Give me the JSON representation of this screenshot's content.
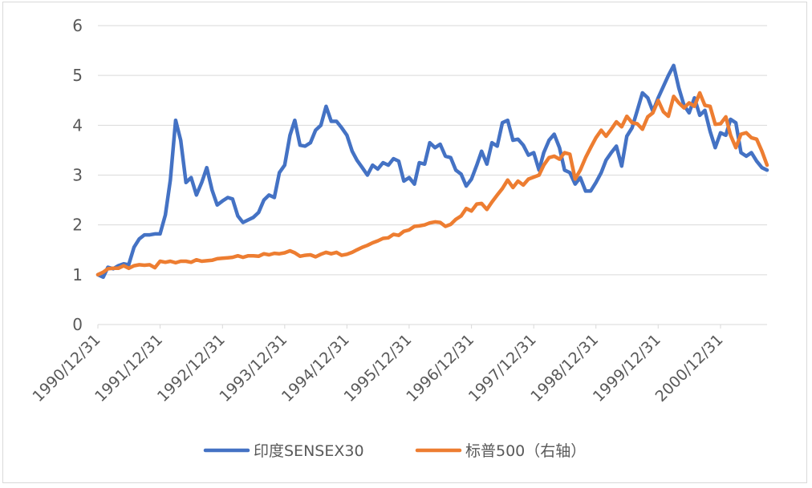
{
  "chart_data": {
    "type": "line",
    "title": "",
    "xlabel": "",
    "ylabel": "",
    "ylim": [
      0,
      6
    ],
    "yticks": [
      "0",
      "1",
      "2",
      "3",
      "4",
      "5",
      "6"
    ],
    "grid": "horizontal",
    "legend_position": "bottom",
    "x_tick_labels": [
      "1990/12/31",
      "1991/12/31",
      "1992/12/31",
      "1993/12/31",
      "1994/12/31",
      "1995/12/31",
      "1996/12/31",
      "1997/12/31",
      "1998/12/31",
      "1999/12/31",
      "2000/12/31"
    ],
    "x_start": "1990/12/31",
    "x_end": "2001/09/30",
    "series": [
      {
        "name": "印度SENSEX30",
        "color": "#4472c4",
        "points": [
          [
            "1990/12/31",
            1.0
          ],
          [
            "1991/01/31",
            0.95
          ],
          [
            "1991/02/28",
            1.15
          ],
          [
            "1991/03/31",
            1.12
          ],
          [
            "1991/04/30",
            1.18
          ],
          [
            "1991/05/31",
            1.22
          ],
          [
            "1991/06/30",
            1.2
          ],
          [
            "1991/07/31",
            1.55
          ],
          [
            "1991/08/31",
            1.72
          ],
          [
            "1991/09/30",
            1.8
          ],
          [
            "1991/10/31",
            1.8
          ],
          [
            "1991/11/30",
            1.82
          ],
          [
            "1991/12/31",
            1.82
          ],
          [
            "1992/01/31",
            2.2
          ],
          [
            "1992/02/29",
            2.9
          ],
          [
            "1992/03/31",
            4.1
          ],
          [
            "1992/04/30",
            3.7
          ],
          [
            "1992/05/31",
            2.85
          ],
          [
            "1992/06/30",
            2.95
          ],
          [
            "1992/07/31",
            2.6
          ],
          [
            "1992/08/31",
            2.85
          ],
          [
            "1992/09/30",
            3.15
          ],
          [
            "1992/10/31",
            2.7
          ],
          [
            "1992/11/30",
            2.4
          ],
          [
            "1992/12/31",
            2.48
          ],
          [
            "1993/01/31",
            2.55
          ],
          [
            "1993/02/28",
            2.52
          ],
          [
            "1993/03/31",
            2.18
          ],
          [
            "1993/04/30",
            2.05
          ],
          [
            "1993/05/31",
            2.1
          ],
          [
            "1993/06/30",
            2.15
          ],
          [
            "1993/07/31",
            2.25
          ],
          [
            "1993/08/31",
            2.5
          ],
          [
            "1993/09/30",
            2.6
          ],
          [
            "1993/10/31",
            2.55
          ],
          [
            "1993/11/30",
            3.05
          ],
          [
            "1993/12/31",
            3.2
          ],
          [
            "1994/01/31",
            3.8
          ],
          [
            "1994/02/28",
            4.1
          ],
          [
            "1994/03/31",
            3.6
          ],
          [
            "1994/04/30",
            3.58
          ],
          [
            "1994/05/31",
            3.65
          ],
          [
            "1994/06/30",
            3.9
          ],
          [
            "1994/07/31",
            4.0
          ],
          [
            "1994/08/31",
            4.38
          ],
          [
            "1994/09/30",
            4.08
          ],
          [
            "1994/10/31",
            4.08
          ],
          [
            "1994/11/30",
            3.95
          ],
          [
            "1994/12/31",
            3.8
          ],
          [
            "1995/01/31",
            3.48
          ],
          [
            "1995/02/28",
            3.3
          ],
          [
            "1995/03/31",
            3.15
          ],
          [
            "1995/04/30",
            3.0
          ],
          [
            "1995/05/31",
            3.2
          ],
          [
            "1995/06/30",
            3.12
          ],
          [
            "1995/07/31",
            3.25
          ],
          [
            "1995/08/31",
            3.2
          ],
          [
            "1995/09/30",
            3.33
          ],
          [
            "1995/10/31",
            3.28
          ],
          [
            "1995/11/30",
            2.88
          ],
          [
            "1995/12/31",
            2.95
          ],
          [
            "1996/01/31",
            2.82
          ],
          [
            "1996/02/29",
            3.25
          ],
          [
            "1996/03/31",
            3.22
          ],
          [
            "1996/04/30",
            3.65
          ],
          [
            "1996/05/31",
            3.55
          ],
          [
            "1996/06/30",
            3.62
          ],
          [
            "1996/07/31",
            3.38
          ],
          [
            "1996/08/31",
            3.35
          ],
          [
            "1996/09/30",
            3.1
          ],
          [
            "1996/10/31",
            3.02
          ],
          [
            "1996/11/30",
            2.78
          ],
          [
            "1996/12/31",
            2.92
          ],
          [
            "1997/01/31",
            3.2
          ],
          [
            "1997/02/28",
            3.48
          ],
          [
            "1997/03/31",
            3.22
          ],
          [
            "1997/04/30",
            3.65
          ],
          [
            "1997/05/31",
            3.58
          ],
          [
            "1997/06/30",
            4.05
          ],
          [
            "1997/07/31",
            4.1
          ],
          [
            "1997/08/31",
            3.7
          ],
          [
            "1997/09/30",
            3.72
          ],
          [
            "1997/10/31",
            3.6
          ],
          [
            "1997/11/30",
            3.4
          ],
          [
            "1997/12/31",
            3.45
          ],
          [
            "1998/01/31",
            3.1
          ],
          [
            "1998/02/28",
            3.45
          ],
          [
            "1998/03/31",
            3.7
          ],
          [
            "1998/04/30",
            3.82
          ],
          [
            "1998/05/31",
            3.55
          ],
          [
            "1998/06/30",
            3.1
          ],
          [
            "1998/07/31",
            3.05
          ],
          [
            "1998/08/31",
            2.82
          ],
          [
            "1998/09/30",
            2.95
          ],
          [
            "1998/10/31",
            2.68
          ],
          [
            "1998/11/30",
            2.68
          ],
          [
            "1998/12/31",
            2.85
          ],
          [
            "1999/01/31",
            3.05
          ],
          [
            "1999/02/28",
            3.3
          ],
          [
            "1999/03/31",
            3.45
          ],
          [
            "1999/04/30",
            3.58
          ],
          [
            "1999/05/31",
            3.18
          ],
          [
            "1999/06/30",
            3.78
          ],
          [
            "1999/07/31",
            3.95
          ],
          [
            "1999/08/31",
            4.3
          ],
          [
            "1999/09/30",
            4.65
          ],
          [
            "1999/10/31",
            4.55
          ],
          [
            "1999/11/30",
            4.28
          ],
          [
            "1999/12/31",
            4.55
          ],
          [
            "2000/01/31",
            4.78
          ],
          [
            "2000/02/29",
            5.0
          ],
          [
            "2000/03/31",
            5.2
          ],
          [
            "2000/04/30",
            4.75
          ],
          [
            "2000/05/31",
            4.4
          ],
          [
            "2000/06/30",
            4.25
          ],
          [
            "2000/07/31",
            4.55
          ],
          [
            "2000/08/31",
            4.2
          ],
          [
            "2000/09/30",
            4.3
          ],
          [
            "2000/10/31",
            3.88
          ],
          [
            "2000/11/30",
            3.55
          ],
          [
            "2000/12/31",
            3.85
          ],
          [
            "2001/01/31",
            3.8
          ],
          [
            "2001/02/28",
            4.12
          ],
          [
            "2001/03/31",
            4.05
          ],
          [
            "2001/04/30",
            3.45
          ],
          [
            "2001/05/31",
            3.38
          ],
          [
            "2001/06/30",
            3.45
          ],
          [
            "2001/07/31",
            3.28
          ],
          [
            "2001/08/31",
            3.15
          ],
          [
            "2001/09/30",
            3.1
          ]
        ]
      },
      {
        "name": "标普500（右轴）",
        "color": "#ed7d31",
        "points": [
          [
            "1990/12/31",
            1.0
          ],
          [
            "1991/01/31",
            1.05
          ],
          [
            "1991/02/28",
            1.12
          ],
          [
            "1991/03/31",
            1.13
          ],
          [
            "1991/04/30",
            1.13
          ],
          [
            "1991/05/31",
            1.18
          ],
          [
            "1991/06/30",
            1.13
          ],
          [
            "1991/07/31",
            1.18
          ],
          [
            "1991/08/31",
            1.2
          ],
          [
            "1991/09/30",
            1.19
          ],
          [
            "1991/10/31",
            1.2
          ],
          [
            "1991/11/30",
            1.14
          ],
          [
            "1991/12/31",
            1.27
          ],
          [
            "1992/01/31",
            1.25
          ],
          [
            "1992/02/29",
            1.27
          ],
          [
            "1992/03/31",
            1.24
          ],
          [
            "1992/04/30",
            1.27
          ],
          [
            "1992/05/31",
            1.27
          ],
          [
            "1992/06/30",
            1.25
          ],
          [
            "1992/07/31",
            1.3
          ],
          [
            "1992/08/31",
            1.27
          ],
          [
            "1992/09/30",
            1.28
          ],
          [
            "1992/10/31",
            1.29
          ],
          [
            "1992/11/30",
            1.32
          ],
          [
            "1992/12/31",
            1.33
          ],
          [
            "1993/01/31",
            1.34
          ],
          [
            "1993/02/28",
            1.35
          ],
          [
            "1993/03/31",
            1.38
          ],
          [
            "1993/04/30",
            1.35
          ],
          [
            "1993/05/31",
            1.38
          ],
          [
            "1993/06/30",
            1.38
          ],
          [
            "1993/07/31",
            1.37
          ],
          [
            "1993/08/31",
            1.42
          ],
          [
            "1993/09/30",
            1.4
          ],
          [
            "1993/10/31",
            1.43
          ],
          [
            "1993/11/30",
            1.42
          ],
          [
            "1993/12/31",
            1.44
          ],
          [
            "1994/01/31",
            1.48
          ],
          [
            "1994/02/28",
            1.44
          ],
          [
            "1994/03/31",
            1.37
          ],
          [
            "1994/04/30",
            1.39
          ],
          [
            "1994/05/31",
            1.4
          ],
          [
            "1994/06/30",
            1.36
          ],
          [
            "1994/07/31",
            1.41
          ],
          [
            "1994/08/31",
            1.45
          ],
          [
            "1994/09/30",
            1.42
          ],
          [
            "1994/10/31",
            1.45
          ],
          [
            "1994/11/30",
            1.39
          ],
          [
            "1994/12/31",
            1.41
          ],
          [
            "1995/01/31",
            1.45
          ],
          [
            "1995/02/28",
            1.5
          ],
          [
            "1995/03/31",
            1.55
          ],
          [
            "1995/04/30",
            1.59
          ],
          [
            "1995/05/31",
            1.64
          ],
          [
            "1995/06/30",
            1.68
          ],
          [
            "1995/07/31",
            1.73
          ],
          [
            "1995/08/31",
            1.74
          ],
          [
            "1995/09/30",
            1.81
          ],
          [
            "1995/10/31",
            1.79
          ],
          [
            "1995/11/30",
            1.87
          ],
          [
            "1995/12/31",
            1.9
          ],
          [
            "1996/01/31",
            1.97
          ],
          [
            "1996/02/29",
            1.98
          ],
          [
            "1996/03/31",
            2.0
          ],
          [
            "1996/04/30",
            2.04
          ],
          [
            "1996/05/31",
            2.06
          ],
          [
            "1996/06/30",
            2.05
          ],
          [
            "1996/07/31",
            1.97
          ],
          [
            "1996/08/31",
            2.01
          ],
          [
            "1996/09/30",
            2.11
          ],
          [
            "1996/10/31",
            2.18
          ],
          [
            "1996/11/30",
            2.33
          ],
          [
            "1996/12/31",
            2.28
          ],
          [
            "1997/01/31",
            2.42
          ],
          [
            "1997/02/28",
            2.43
          ],
          [
            "1997/03/31",
            2.31
          ],
          [
            "1997/04/30",
            2.46
          ],
          [
            "1997/05/31",
            2.6
          ],
          [
            "1997/06/30",
            2.73
          ],
          [
            "1997/07/31",
            2.9
          ],
          [
            "1997/08/31",
            2.75
          ],
          [
            "1997/09/30",
            2.88
          ],
          [
            "1997/10/31",
            2.8
          ],
          [
            "1997/11/30",
            2.92
          ],
          [
            "1997/12/31",
            2.96
          ],
          [
            "1998/01/31",
            3.0
          ],
          [
            "1998/02/28",
            3.2
          ],
          [
            "1998/03/31",
            3.35
          ],
          [
            "1998/04/30",
            3.38
          ],
          [
            "1998/05/31",
            3.32
          ],
          [
            "1998/06/30",
            3.45
          ],
          [
            "1998/07/31",
            3.42
          ],
          [
            "1998/08/31",
            2.92
          ],
          [
            "1998/09/30",
            3.1
          ],
          [
            "1998/10/31",
            3.35
          ],
          [
            "1998/11/30",
            3.55
          ],
          [
            "1998/12/31",
            3.75
          ],
          [
            "1999/01/31",
            3.9
          ],
          [
            "1999/02/28",
            3.78
          ],
          [
            "1999/03/31",
            3.92
          ],
          [
            "1999/04/30",
            4.07
          ],
          [
            "1999/05/31",
            3.97
          ],
          [
            "1999/06/30",
            4.18
          ],
          [
            "1999/07/31",
            4.05
          ],
          [
            "1999/08/31",
            4.03
          ],
          [
            "1999/09/30",
            3.92
          ],
          [
            "1999/10/31",
            4.17
          ],
          [
            "1999/11/30",
            4.25
          ],
          [
            "1999/12/31",
            4.5
          ],
          [
            "2000/01/31",
            4.27
          ],
          [
            "2000/02/29",
            4.18
          ],
          [
            "2000/03/31",
            4.58
          ],
          [
            "2000/04/30",
            4.45
          ],
          [
            "2000/05/31",
            4.35
          ],
          [
            "2000/06/30",
            4.45
          ],
          [
            "2000/07/31",
            4.38
          ],
          [
            "2000/08/31",
            4.65
          ],
          [
            "2000/09/30",
            4.4
          ],
          [
            "2000/10/31",
            4.38
          ],
          [
            "2000/11/30",
            4.02
          ],
          [
            "2000/12/31",
            4.03
          ],
          [
            "2001/01/31",
            4.17
          ],
          [
            "2001/02/28",
            3.8
          ],
          [
            "2001/03/31",
            3.55
          ],
          [
            "2001/04/30",
            3.82
          ],
          [
            "2001/05/31",
            3.85
          ],
          [
            "2001/06/30",
            3.75
          ],
          [
            "2001/07/31",
            3.72
          ],
          [
            "2001/08/31",
            3.48
          ],
          [
            "2001/09/30",
            3.2
          ]
        ]
      }
    ]
  }
}
